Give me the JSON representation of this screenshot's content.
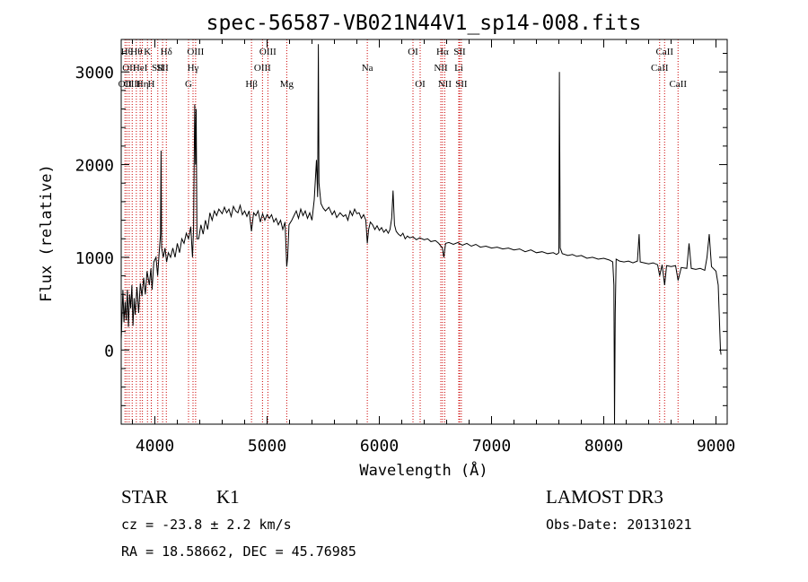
{
  "chart_data": {
    "type": "line",
    "title": "spec-56587-VB021N44V1_sp14-008.fits",
    "xlabel": "Wavelength (Å)",
    "ylabel": "Flux (relative)",
    "xlim": [
      3700,
      9100
    ],
    "ylim": [
      -800,
      3350
    ],
    "x_ticks": [
      4000,
      5000,
      6000,
      7000,
      8000,
      9000
    ],
    "y_ticks": [
      0,
      1000,
      2000,
      3000
    ],
    "line_color": "#000000",
    "marker_color": "#cc0000",
    "series": [
      {
        "name": "flux",
        "points": [
          [
            3700,
            100
          ],
          [
            3715,
            650
          ],
          [
            3725,
            300
          ],
          [
            3735,
            520
          ],
          [
            3745,
            320
          ],
          [
            3755,
            650
          ],
          [
            3765,
            250
          ],
          [
            3775,
            600
          ],
          [
            3785,
            450
          ],
          [
            3795,
            700
          ],
          [
            3805,
            260
          ],
          [
            3815,
            560
          ],
          [
            3825,
            380
          ],
          [
            3840,
            680
          ],
          [
            3855,
            400
          ],
          [
            3870,
            720
          ],
          [
            3885,
            580
          ],
          [
            3900,
            780
          ],
          [
            3915,
            600
          ],
          [
            3930,
            850
          ],
          [
            3950,
            700
          ],
          [
            3965,
            880
          ],
          [
            3975,
            650
          ],
          [
            3990,
            950
          ],
          [
            4010,
            1000
          ],
          [
            4025,
            800
          ],
          [
            4040,
            1080
          ],
          [
            4050,
            1250
          ],
          [
            4055,
            2150
          ],
          [
            4060,
            1100
          ],
          [
            4075,
            1000
          ],
          [
            4090,
            1100
          ],
          [
            4105,
            950
          ],
          [
            4120,
            1050
          ],
          [
            4140,
            1000
          ],
          [
            4160,
            1100
          ],
          [
            4180,
            1000
          ],
          [
            4200,
            1150
          ],
          [
            4220,
            1050
          ],
          [
            4240,
            1200
          ],
          [
            4260,
            1150
          ],
          [
            4280,
            1260
          ],
          [
            4300,
            1200
          ],
          [
            4320,
            1330
          ],
          [
            4335,
            1000
          ],
          [
            4345,
            1300
          ],
          [
            4355,
            2650
          ],
          [
            4362,
            2000
          ],
          [
            4368,
            2600
          ],
          [
            4375,
            1200
          ],
          [
            4390,
            1200
          ],
          [
            4410,
            1350
          ],
          [
            4430,
            1250
          ],
          [
            4450,
            1400
          ],
          [
            4470,
            1300
          ],
          [
            4490,
            1480
          ],
          [
            4510,
            1400
          ],
          [
            4530,
            1500
          ],
          [
            4550,
            1450
          ],
          [
            4570,
            1520
          ],
          [
            4600,
            1470
          ],
          [
            4620,
            1540
          ],
          [
            4640,
            1480
          ],
          [
            4660,
            1520
          ],
          [
            4680,
            1440
          ],
          [
            4700,
            1550
          ],
          [
            4720,
            1500
          ],
          [
            4740,
            1480
          ],
          [
            4760,
            1560
          ],
          [
            4780,
            1460
          ],
          [
            4800,
            1500
          ],
          [
            4820,
            1440
          ],
          [
            4840,
            1500
          ],
          [
            4861,
            1280
          ],
          [
            4880,
            1480
          ],
          [
            4900,
            1450
          ],
          [
            4920,
            1500
          ],
          [
            4940,
            1380
          ],
          [
            4960,
            1470
          ],
          [
            4980,
            1400
          ],
          [
            5000,
            1460
          ],
          [
            5020,
            1420
          ],
          [
            5040,
            1460
          ],
          [
            5060,
            1380
          ],
          [
            5080,
            1420
          ],
          [
            5100,
            1350
          ],
          [
            5120,
            1400
          ],
          [
            5140,
            1300
          ],
          [
            5160,
            1380
          ],
          [
            5175,
            900
          ],
          [
            5183,
            1000
          ],
          [
            5195,
            1350
          ],
          [
            5220,
            1400
          ],
          [
            5240,
            1450
          ],
          [
            5260,
            1500
          ],
          [
            5280,
            1420
          ],
          [
            5300,
            1520
          ],
          [
            5320,
            1450
          ],
          [
            5340,
            1500
          ],
          [
            5360,
            1420
          ],
          [
            5380,
            1480
          ],
          [
            5400,
            1400
          ],
          [
            5420,
            1620
          ],
          [
            5440,
            2050
          ],
          [
            5450,
            1650
          ],
          [
            5457,
            3300
          ],
          [
            5462,
            1800
          ],
          [
            5480,
            1580
          ],
          [
            5500,
            1530
          ],
          [
            5520,
            1500
          ],
          [
            5550,
            1540
          ],
          [
            5580,
            1460
          ],
          [
            5600,
            1500
          ],
          [
            5620,
            1430
          ],
          [
            5650,
            1480
          ],
          [
            5680,
            1440
          ],
          [
            5700,
            1460
          ],
          [
            5720,
            1400
          ],
          [
            5740,
            1500
          ],
          [
            5760,
            1450
          ],
          [
            5780,
            1520
          ],
          [
            5800,
            1470
          ],
          [
            5820,
            1480
          ],
          [
            5840,
            1420
          ],
          [
            5860,
            1460
          ],
          [
            5880,
            1400
          ],
          [
            5893,
            1150
          ],
          [
            5905,
            1300
          ],
          [
            5920,
            1380
          ],
          [
            5940,
            1350
          ],
          [
            5960,
            1300
          ],
          [
            5980,
            1340
          ],
          [
            6000,
            1290
          ],
          [
            6020,
            1320
          ],
          [
            6040,
            1270
          ],
          [
            6060,
            1300
          ],
          [
            6080,
            1260
          ],
          [
            6095,
            1300
          ],
          [
            6110,
            1420
          ],
          [
            6122,
            1720
          ],
          [
            6135,
            1350
          ],
          [
            6150,
            1280
          ],
          [
            6170,
            1250
          ],
          [
            6190,
            1230
          ],
          [
            6210,
            1260
          ],
          [
            6230,
            1200
          ],
          [
            6250,
            1230
          ],
          [
            6270,
            1210
          ],
          [
            6300,
            1220
          ],
          [
            6330,
            1190
          ],
          [
            6360,
            1210
          ],
          [
            6400,
            1190
          ],
          [
            6430,
            1200
          ],
          [
            6460,
            1170
          ],
          [
            6500,
            1180
          ],
          [
            6530,
            1150
          ],
          [
            6562,
            1100
          ],
          [
            6575,
            1000
          ],
          [
            6590,
            1150
          ],
          [
            6620,
            1160
          ],
          [
            6660,
            1140
          ],
          [
            6700,
            1160
          ],
          [
            6740,
            1130
          ],
          [
            6780,
            1150
          ],
          [
            6820,
            1120
          ],
          [
            6860,
            1140
          ],
          [
            6900,
            1110
          ],
          [
            6950,
            1120
          ],
          [
            7000,
            1100
          ],
          [
            7050,
            1110
          ],
          [
            7100,
            1090
          ],
          [
            7150,
            1100
          ],
          [
            7200,
            1080
          ],
          [
            7250,
            1090
          ],
          [
            7300,
            1060
          ],
          [
            7350,
            1080
          ],
          [
            7400,
            1050
          ],
          [
            7450,
            1060
          ],
          [
            7500,
            1040
          ],
          [
            7550,
            1050
          ],
          [
            7580,
            1030
          ],
          [
            7600,
            1050
          ],
          [
            7605,
            3000
          ],
          [
            7612,
            1100
          ],
          [
            7630,
            1040
          ],
          [
            7680,
            1020
          ],
          [
            7720,
            1030
          ],
          [
            7760,
            1010
          ],
          [
            7800,
            1020
          ],
          [
            7850,
            990
          ],
          [
            7900,
            1000
          ],
          [
            7950,
            980
          ],
          [
            8000,
            990
          ],
          [
            8050,
            970
          ],
          [
            8080,
            950
          ],
          [
            8090,
            700
          ],
          [
            8096,
            -800
          ],
          [
            8102,
            400
          ],
          [
            8110,
            980
          ],
          [
            8140,
            960
          ],
          [
            8180,
            950
          ],
          [
            8220,
            960
          ],
          [
            8260,
            940
          ],
          [
            8300,
            960
          ],
          [
            8315,
            1250
          ],
          [
            8325,
            950
          ],
          [
            8360,
            940
          ],
          [
            8400,
            930
          ],
          [
            8440,
            940
          ],
          [
            8480,
            920
          ],
          [
            8498,
            800
          ],
          [
            8520,
            920
          ],
          [
            8542,
            700
          ],
          [
            8560,
            910
          ],
          [
            8600,
            900
          ],
          [
            8640,
            910
          ],
          [
            8662,
            750
          ],
          [
            8690,
            890
          ],
          [
            8740,
            880
          ],
          [
            8760,
            1150
          ],
          [
            8780,
            880
          ],
          [
            8820,
            870
          ],
          [
            8860,
            880
          ],
          [
            8900,
            860
          ],
          [
            8920,
            1000
          ],
          [
            8940,
            1250
          ],
          [
            8960,
            900
          ],
          [
            9000,
            850
          ],
          [
            9020,
            700
          ],
          [
            9040,
            0
          ],
          [
            9045,
            -50
          ]
        ]
      }
    ],
    "lines": [
      {
        "x": 3734,
        "row": 2,
        "label": "OII"
      },
      {
        "x": 3750,
        "row": 0,
        "label": "Hθ"
      },
      {
        "x": 3771,
        "row": 1,
        "label": "OII"
      },
      {
        "x": 3798,
        "row": 2,
        "label": "OIII"
      },
      {
        "x": 3835,
        "row": 0,
        "label": "Hθ"
      },
      {
        "x": 3869,
        "row": 1,
        "label": "HeI"
      },
      {
        "x": 3889,
        "row": 2,
        "label": "Hη"
      },
      {
        "x": 3934,
        "row": 0,
        "label": "K"
      },
      {
        "x": 3968,
        "row": 2,
        "label": "H"
      },
      {
        "x": 4026,
        "row": 1,
        "label": "SII"
      },
      {
        "x": 4069,
        "row": 1,
        "label": "SII"
      },
      {
        "x": 4102,
        "row": 0,
        "label": "Hδ"
      },
      {
        "x": 4300,
        "row": 2,
        "label": "G"
      },
      {
        "x": 4340,
        "row": 1,
        "label": "Hγ"
      },
      {
        "x": 4363,
        "row": 0,
        "label": "OIII"
      },
      {
        "x": 4861,
        "row": 2,
        "label": "Hβ"
      },
      {
        "x": 4959,
        "row": 1,
        "label": "OIII"
      },
      {
        "x": 5007,
        "row": 0,
        "label": "OIII"
      },
      {
        "x": 5175,
        "row": 2,
        "label": "Mg"
      },
      {
        "x": 5893,
        "row": 1,
        "label": "Na"
      },
      {
        "x": 6300,
        "row": 0,
        "label": "OI"
      },
      {
        "x": 6364,
        "row": 2,
        "label": "OI"
      },
      {
        "x": 6548,
        "row": 1,
        "label": "NII"
      },
      {
        "x": 6563,
        "row": 0,
        "label": "Hα"
      },
      {
        "x": 6583,
        "row": 2,
        "label": "NII"
      },
      {
        "x": 6708,
        "row": 1,
        "label": "Li"
      },
      {
        "x": 6716,
        "row": 0,
        "label": "SII"
      },
      {
        "x": 6731,
        "row": 2,
        "label": "SII"
      },
      {
        "x": 8498,
        "row": 1,
        "label": "CaII"
      },
      {
        "x": 8542,
        "row": 0,
        "label": "CaII"
      },
      {
        "x": 8662,
        "row": 2,
        "label": "CaII"
      }
    ]
  },
  "info": {
    "object_class": "STAR",
    "subclass": "K1",
    "survey": "LAMOST DR3",
    "redshift": "cz = -23.8 ± 2.2 km/s",
    "obs_date": "Obs-Date: 20131021",
    "coordinates": "RA =  18.58662, DEC =  45.76985"
  }
}
